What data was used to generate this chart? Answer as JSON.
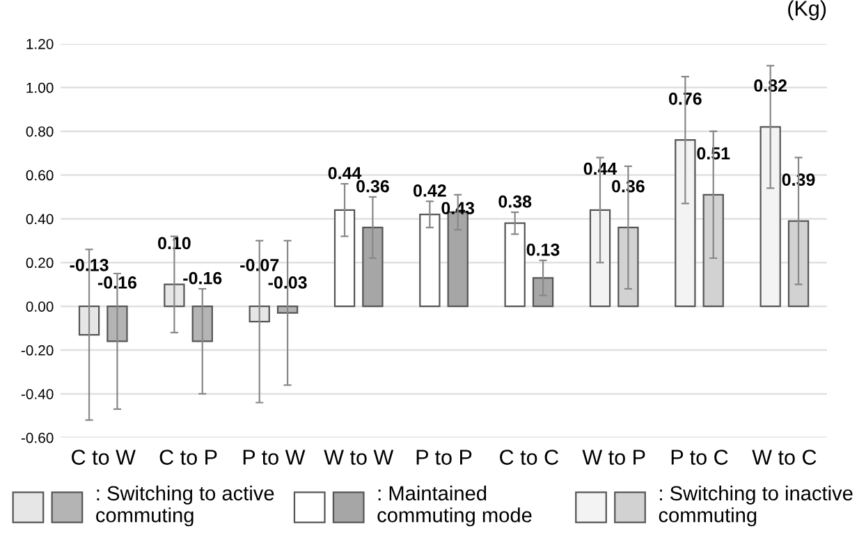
{
  "chart_data": {
    "type": "bar",
    "ylabel": "(Kg)",
    "categories": [
      "C to W",
      "C to P",
      "P to W",
      "W to W",
      "P to P",
      "C to C",
      "W to P",
      "P to C",
      "W to C"
    ],
    "series": [
      {
        "colors": [
          "#e6e6e6",
          "#e6e6e6",
          "#e6e6e6",
          "#ffffff",
          "#ffffff",
          "#ffffff",
          "#f3f3f3",
          "#f3f3f3",
          "#f3f3f3"
        ],
        "values": [
          -0.13,
          0.1,
          -0.07,
          0.44,
          0.42,
          0.38,
          0.44,
          0.76,
          0.82
        ],
        "value_labels": [
          "-0.13",
          "0.10",
          "-0.07",
          "0.44",
          "0.42",
          "0.38",
          "0.44",
          "0.76",
          "0.82"
        ],
        "errors": [
          [
            -0.52,
            0.26
          ],
          [
            -0.12,
            0.32
          ],
          [
            -0.44,
            0.3
          ],
          [
            0.32,
            0.56
          ],
          [
            0.36,
            0.48
          ],
          [
            0.33,
            0.43
          ],
          [
            0.2,
            0.68
          ],
          [
            0.47,
            1.05
          ],
          [
            0.54,
            1.1
          ]
        ]
      },
      {
        "colors": [
          "#b4b4b4",
          "#b4b4b4",
          "#b4b4b4",
          "#a6a6a6",
          "#a6a6a6",
          "#a6a6a6",
          "#d2d2d2",
          "#d2d2d2",
          "#d2d2d2"
        ],
        "values": [
          -0.16,
          -0.16,
          -0.03,
          0.36,
          0.43,
          0.13,
          0.36,
          0.51,
          0.39
        ],
        "value_labels": [
          "-0.16",
          "-0.16",
          "-0.03",
          "0.36",
          "0.43",
          "0.13",
          "0.36",
          "0.51",
          "0.39"
        ],
        "errors": [
          [
            -0.47,
            0.15
          ],
          [
            -0.4,
            0.08
          ],
          [
            -0.36,
            0.3
          ],
          [
            0.22,
            0.5
          ],
          [
            0.35,
            0.51
          ],
          [
            0.05,
            0.21
          ],
          [
            0.08,
            0.64
          ],
          [
            0.22,
            0.8
          ],
          [
            0.1,
            0.68
          ]
        ]
      }
    ],
    "ylim": [
      -0.6,
      1.2
    ],
    "yticks": [
      {
        "value": -0.6,
        "label": "-0.60"
      },
      {
        "value": -0.4,
        "label": "-0.40"
      },
      {
        "value": -0.2,
        "label": "-0.20"
      },
      {
        "value": 0,
        "label": "0.00"
      },
      {
        "value": 0.2,
        "label": "0.20"
      },
      {
        "value": 0.4,
        "label": "0.40"
      },
      {
        "value": 0.6,
        "label": "0.60"
      },
      {
        "value": 0.8,
        "label": "0.80"
      },
      {
        "value": 1.0,
        "label": "1.00"
      },
      {
        "value": 1.2,
        "label": "1.20"
      }
    ],
    "grid": "y",
    "annotations": [
      ": Switching to active\ncommuting",
      ": Maintained\ncommuting mode",
      ": Switching to inactive\ncommuting"
    ]
  }
}
